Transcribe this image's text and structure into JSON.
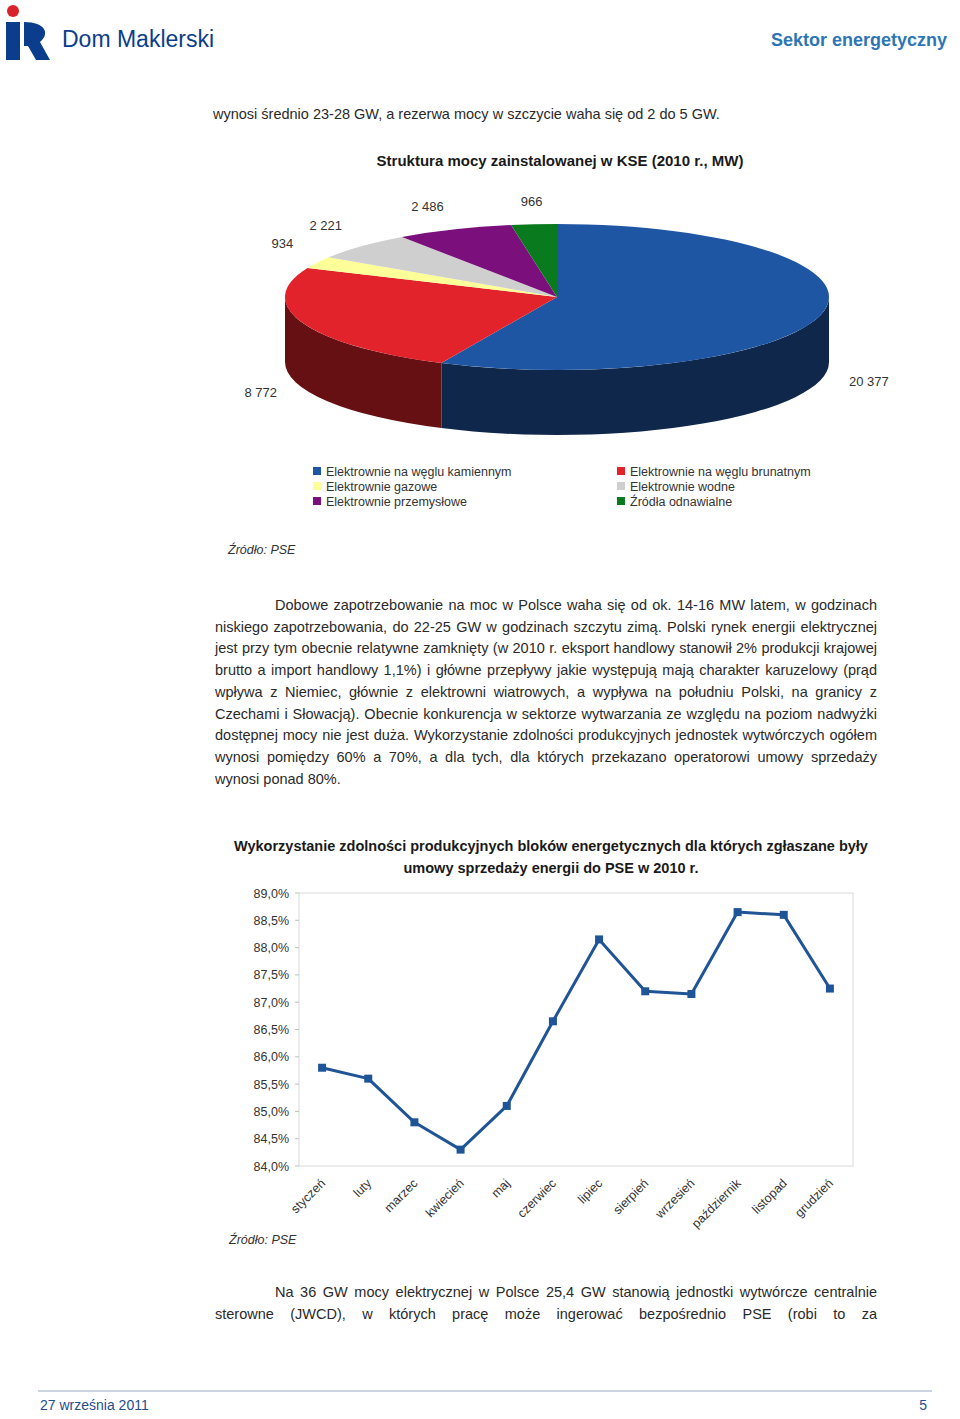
{
  "header": {
    "brand": "Dom Maklerski",
    "section": "Sektor energetyczny"
  },
  "paragraphs": [
    "wynosi średnio 23-28 GW, a rezerwa mocy w szczycie waha się od 2 do 5 GW.",
    "Dobowe zapotrzebowanie na moc w Polsce waha się od ok. 14-16 MW latem, w godzinach niskiego zapotrzebowania, do 22-25 GW w godzinach szczytu zimą. Polski rynek energii elektrycznej jest przy tym obecnie relatywne zamknięty (w 2010 r. eksport handlowy stanowił 2% produkcji krajowej brutto a import handlowy 1,1%) i główne przepływy jakie występują mają charakter karuzelowy (prąd wpływa z Niemiec, głównie z elektrowni wiatrowych, a wypływa na południu Polski, na granicy z Czechami i Słowacją). Obecnie konkurencja w sektorze wytwarzania ze względu na poziom nadwyżki dostępnej mocy nie jest duża. Wykorzystanie zdolności produkcyjnych jednostek wytwórczych ogółem wynosi pomiędzy 60% a 70%, a dla tych, dla których przekazano operatorowi umowy sprzedaży wynosi ponad 80%.",
    "Na 36 GW mocy elektrycznej w Polsce 25,4 GW stanowią jednostki wytwórcze centralnie sterowne (JWCD), w których pracę może ingerować bezpośrednio PSE (robi to za"
  ],
  "chart_data": [
    {
      "type": "pie",
      "title": "Struktura mocy zainstalowanej w KSE (2010 r., MW)",
      "categories": [
        "Elektrownie na węglu kamiennym",
        "Elektrownie na węglu brunatnym",
        "Elektrownie gazowe",
        "Elektrownie wodne",
        "Elektrownie przemysłowe",
        "Źródła odnawialne"
      ],
      "values": [
        20377,
        8772,
        934,
        2221,
        2486,
        966
      ],
      "value_labels": [
        "20 377",
        "8 772",
        "934",
        "2 221",
        "2 486",
        "966"
      ],
      "colors": [
        "#1f56a4",
        "#e3232c",
        "#ffff99",
        "#cfcfcf",
        "#7b0f7b",
        "#0a7a1f"
      ],
      "data_labels": true,
      "legend": "bottom",
      "source": "Źródło: PSE"
    },
    {
      "type": "line",
      "title": "Wykorzystanie zdolności produkcyjnych bloków energetycznych dla których zgłaszane były umowy sprzedaży energii do PSE w 2010 r.",
      "categories": [
        "styczeń",
        "luty",
        "marzec",
        "kwiecień",
        "maj",
        "czerwiec",
        "lipiec",
        "sierpień",
        "wrzesień",
        "październik",
        "listopad",
        "grudzień"
      ],
      "values": [
        85.8,
        85.6,
        84.8,
        84.3,
        85.1,
        86.65,
        88.15,
        87.2,
        87.15,
        88.65,
        88.6,
        87.25
      ],
      "color": "#1f5596",
      "marker": "square",
      "ylim": [
        84,
        89
      ],
      "yticks": [
        {
          "value": 84,
          "label": "84,0%"
        },
        {
          "value": 84.5,
          "label": "84,5%"
        },
        {
          "value": 85,
          "label": "85,0%"
        },
        {
          "value": 85.5,
          "label": "85,5%"
        },
        {
          "value": 86,
          "label": "86,0%"
        },
        {
          "value": 86.5,
          "label": "86,5%"
        },
        {
          "value": 87,
          "label": "87,0%"
        },
        {
          "value": 87.5,
          "label": "87,5%"
        },
        {
          "value": 88,
          "label": "88,0%"
        },
        {
          "value": 88.5,
          "label": "88,5%"
        },
        {
          "value": 89,
          "label": "89,0%"
        }
      ],
      "grid": false,
      "source": "Źródło: PSE"
    }
  ],
  "footer": {
    "date": "27 września 2011",
    "page": 5
  }
}
